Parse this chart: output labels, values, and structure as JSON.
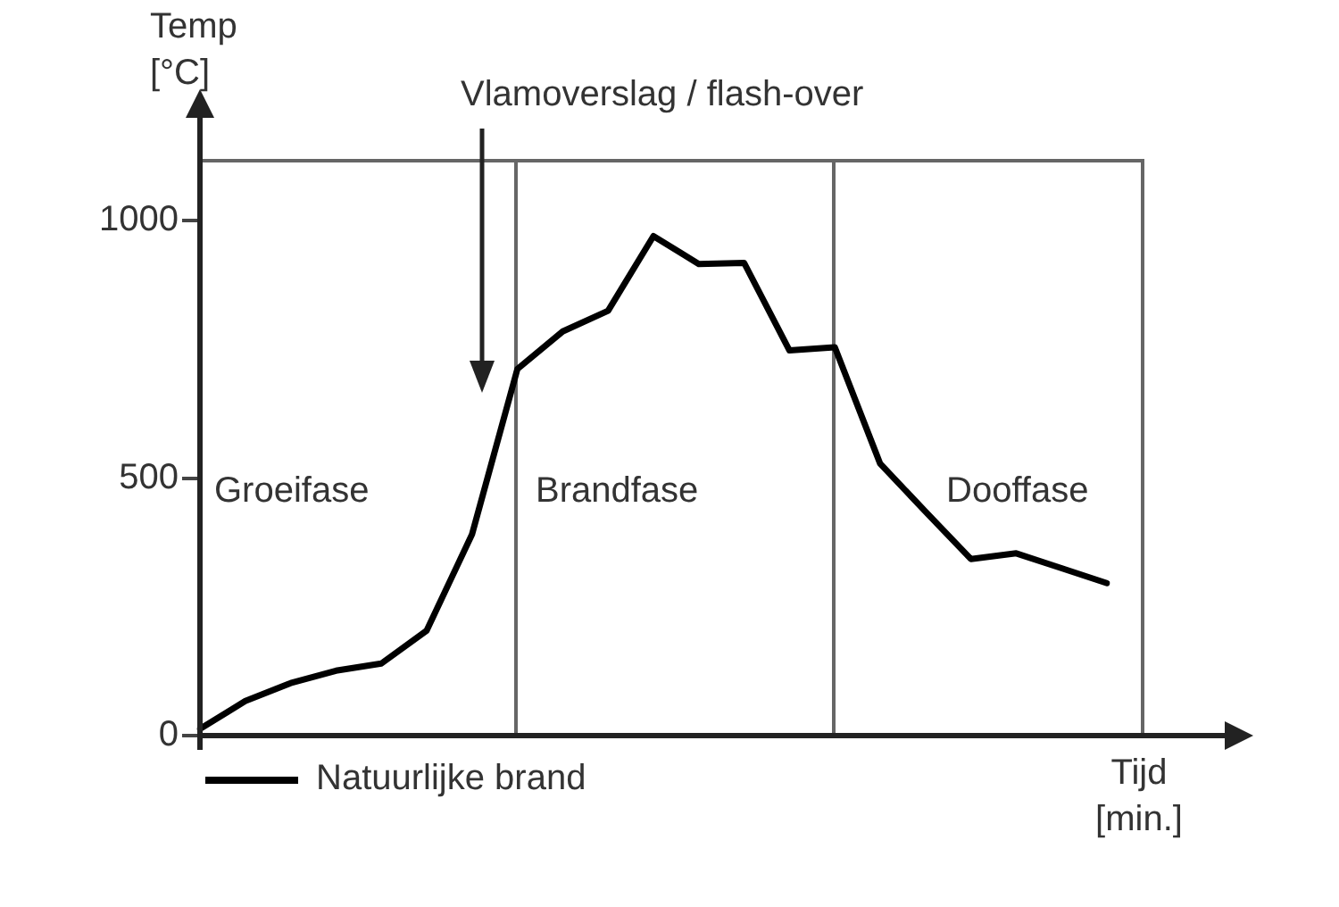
{
  "chart_data": {
    "type": "line",
    "ylabel": "Temp [°C]",
    "xlabel": "Tijd [min.]",
    "categories": [
      null,
      null,
      null,
      null,
      null,
      null,
      null,
      null,
      null,
      null,
      null,
      null,
      null,
      null,
      null,
      null,
      null,
      null,
      null,
      null,
      null
    ],
    "ylim": [
      0,
      1120
    ],
    "yticks": [
      0,
      500,
      1000
    ],
    "grid": false,
    "legend": "bottom left",
    "marker": "none",
    "line_style": "solid",
    "series": [
      {
        "name": "Natuurlijke brand",
        "color": "#000000",
        "values": [
          13,
          67,
          102,
          126,
          140,
          204,
          391,
          712,
          785,
          825,
          970,
          916,
          918,
          748,
          754,
          528,
          435,
          343,
          354,
          325,
          296
        ]
      }
    ],
    "annotations": [
      "Vlamoverslag / flash-over",
      "Groeifase",
      "Brandfase",
      "Dooffase"
    ]
  }
}
